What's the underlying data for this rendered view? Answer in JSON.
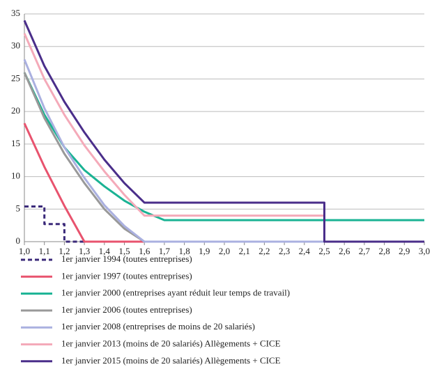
{
  "chart_data": {
    "type": "line",
    "xlim": [
      1.0,
      3.0
    ],
    "xticks": [
      {
        "value": 1.0,
        "label": "1,0"
      },
      {
        "value": 1.1,
        "label": "1,1"
      },
      {
        "value": 1.2,
        "label": "1,2"
      },
      {
        "value": 1.3,
        "label": "1,3"
      },
      {
        "value": 1.4,
        "label": "1,4"
      },
      {
        "value": 1.5,
        "label": "1,5"
      },
      {
        "value": 1.6,
        "label": "1,6"
      },
      {
        "value": 1.7,
        "label": "1,7"
      },
      {
        "value": 1.8,
        "label": "1,8"
      },
      {
        "value": 1.9,
        "label": "1,9"
      },
      {
        "value": 2.0,
        "label": "2,0"
      },
      {
        "value": 2.1,
        "label": "2,1"
      },
      {
        "value": 2.2,
        "label": "2,2"
      },
      {
        "value": 2.3,
        "label": "2,3"
      },
      {
        "value": 2.4,
        "label": "2,4"
      },
      {
        "value": 2.5,
        "label": "2,5"
      },
      {
        "value": 2.6,
        "label": "2,6"
      },
      {
        "value": 2.7,
        "label": "2,7"
      },
      {
        "value": 2.8,
        "label": "2,8"
      },
      {
        "value": 2.9,
        "label": "2,9"
      },
      {
        "value": 3.0,
        "label": "3,0"
      }
    ],
    "ylim": [
      0,
      35
    ],
    "yticks": [
      0,
      5,
      10,
      15,
      20,
      25,
      30,
      35
    ],
    "grid": true,
    "legend": "bottom",
    "series": [
      {
        "name": "1er janvier 1994 (toutes entreprises)",
        "color": "#3b2a7a",
        "style": "dashed",
        "x": [
          1.0,
          1.1,
          1.1,
          1.2,
          1.2,
          1.6
        ],
        "values": [
          5.4,
          5.4,
          2.7,
          2.7,
          0,
          0
        ]
      },
      {
        "name": "1er janvier 1997 (toutes entreprises)",
        "color": "#e8536e",
        "style": "solid",
        "x": [
          1.0,
          1.1,
          1.2,
          1.3,
          1.6
        ],
        "values": [
          18.2,
          11.5,
          5.5,
          0,
          0
        ]
      },
      {
        "name": "1er janvier 2000 (entreprises ayant réduit leur temps de travail)",
        "color": "#1ab394",
        "style": "solid",
        "x": [
          1.0,
          1.1,
          1.2,
          1.3,
          1.4,
          1.5,
          1.6,
          1.7,
          3.0
        ],
        "values": [
          26,
          19.5,
          14.5,
          11,
          8.5,
          6.3,
          4.6,
          3.3,
          3.3
        ]
      },
      {
        "name": "1er janvier 2006 (toutes entreprises)",
        "color": "#999999",
        "style": "solid",
        "x": [
          1.0,
          1.1,
          1.2,
          1.3,
          1.4,
          1.5,
          1.6,
          3.0
        ],
        "values": [
          26,
          19,
          13.5,
          9,
          5,
          2,
          0,
          0
        ]
      },
      {
        "name": "1er janvier 2008 (entreprises de moins de 20 salariés)",
        "color": "#aab0e0",
        "style": "solid",
        "x": [
          1.0,
          1.1,
          1.2,
          1.3,
          1.4,
          1.5,
          1.6,
          3.0
        ],
        "values": [
          28,
          20.5,
          14.5,
          9.8,
          5.6,
          2.4,
          0,
          0
        ]
      },
      {
        "name": "1er janvier 2013 (moins de 20 salariés) Allègements + CICE",
        "color": "#f4aab9",
        "style": "solid",
        "x": [
          1.0,
          1.1,
          1.2,
          1.3,
          1.4,
          1.5,
          1.6,
          2.5
        ],
        "values": [
          32,
          25,
          19.5,
          14.8,
          10.8,
          7.2,
          4,
          4
        ]
      },
      {
        "name": "1er janvier 2015 (moins de 20 salariés) Allègements + CICE",
        "color": "#4a2e8a",
        "style": "solid",
        "x": [
          1.0,
          1.1,
          1.2,
          1.3,
          1.4,
          1.5,
          1.6,
          2.5,
          2.5,
          3.0
        ],
        "values": [
          34,
          27,
          21.5,
          16.8,
          12.6,
          9,
          6,
          6,
          0,
          0
        ]
      }
    ]
  }
}
